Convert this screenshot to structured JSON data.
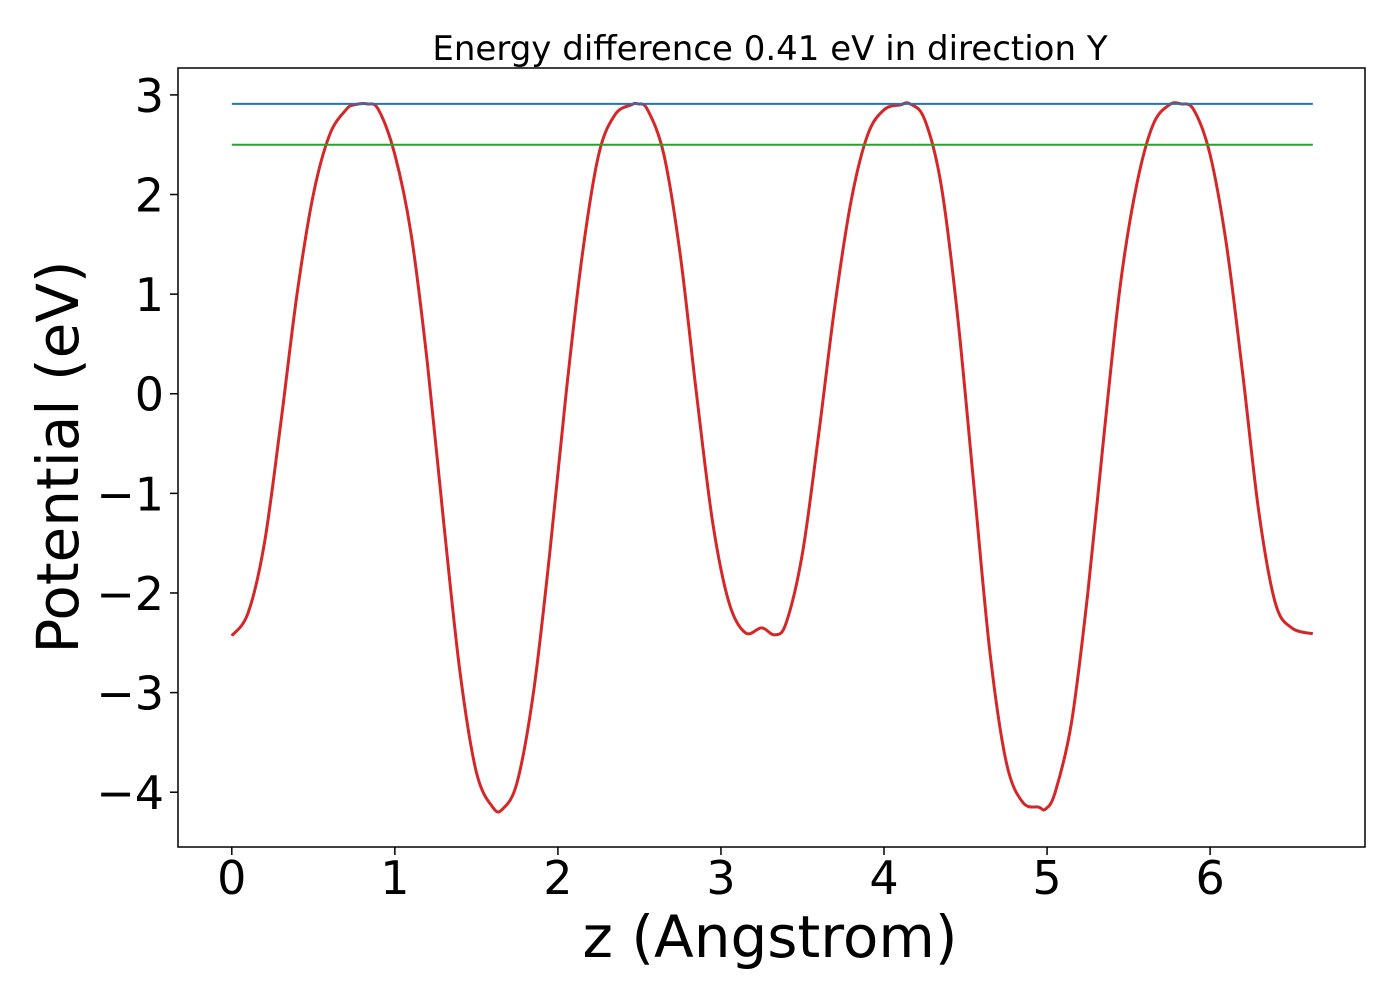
{
  "chart_data": {
    "type": "line",
    "title": "Energy difference 0.41 eV in direction Y",
    "xlabel": "z (Angstrom)",
    "ylabel": "Potential (eV)",
    "xlim": [
      -0.33,
      6.95
    ],
    "ylim": [
      -4.55,
      3.27
    ],
    "x_ticks": [
      0,
      1,
      2,
      3,
      4,
      5,
      6
    ],
    "x_tick_labels": [
      "0",
      "1",
      "2",
      "3",
      "4",
      "5",
      "6"
    ],
    "y_ticks": [
      3,
      2,
      1,
      0,
      -1,
      -2,
      -3,
      -4
    ],
    "y_tick_labels": [
      "3",
      "2",
      "1",
      "0",
      "−1",
      "−2",
      "−3",
      "−4"
    ],
    "grid": false,
    "series": [
      {
        "color": "#d62728",
        "style": "curve",
        "x": [
          0.0,
          0.1,
          0.2,
          0.3,
          0.4,
          0.5,
          0.6,
          0.7,
          0.75,
          0.83,
          0.9,
          1.0,
          1.1,
          1.2,
          1.3,
          1.4,
          1.5,
          1.6,
          1.66,
          1.75,
          1.85,
          1.95,
          2.05,
          2.15,
          2.25,
          2.35,
          2.45,
          2.49,
          2.55,
          2.65,
          2.75,
          2.85,
          2.95,
          3.05,
          3.15,
          3.25,
          3.33,
          3.4,
          3.5,
          3.6,
          3.7,
          3.8,
          3.9,
          4.0,
          4.1,
          4.16,
          4.25,
          4.35,
          4.45,
          4.55,
          4.65,
          4.75,
          4.85,
          4.95,
          4.99,
          5.05,
          5.15,
          5.25,
          5.35,
          5.45,
          5.55,
          5.65,
          5.75,
          5.82,
          5.9,
          6.0,
          6.1,
          6.2,
          6.3,
          6.4,
          6.5,
          6.63
        ],
        "y": [
          -2.43,
          -2.2,
          -1.5,
          -0.3,
          1.0,
          2.0,
          2.6,
          2.85,
          2.9,
          2.91,
          2.85,
          2.4,
          1.6,
          0.3,
          -1.3,
          -2.8,
          -3.8,
          -4.15,
          -4.17,
          -3.9,
          -3.0,
          -1.6,
          0.0,
          1.4,
          2.4,
          2.8,
          2.9,
          2.91,
          2.85,
          2.4,
          1.4,
          0.0,
          -1.3,
          -2.1,
          -2.4,
          -2.35,
          -2.42,
          -2.3,
          -1.6,
          -0.4,
          0.9,
          1.95,
          2.6,
          2.85,
          2.9,
          2.91,
          2.75,
          2.1,
          0.8,
          -0.9,
          -2.6,
          -3.7,
          -4.1,
          -4.15,
          -4.17,
          -4.0,
          -3.3,
          -2.0,
          -0.4,
          1.1,
          2.1,
          2.7,
          2.9,
          2.91,
          2.85,
          2.4,
          1.5,
          0.2,
          -1.2,
          -2.1,
          -2.35,
          -2.41
        ]
      },
      {
        "color": "#1f77b4",
        "style": "flat",
        "x": [
          0.0,
          6.63
        ],
        "y": [
          2.91,
          2.91
        ]
      },
      {
        "color": "#2ca02c",
        "style": "flat",
        "x": [
          0.0,
          6.63
        ],
        "y": [
          2.5,
          2.5
        ]
      }
    ]
  }
}
